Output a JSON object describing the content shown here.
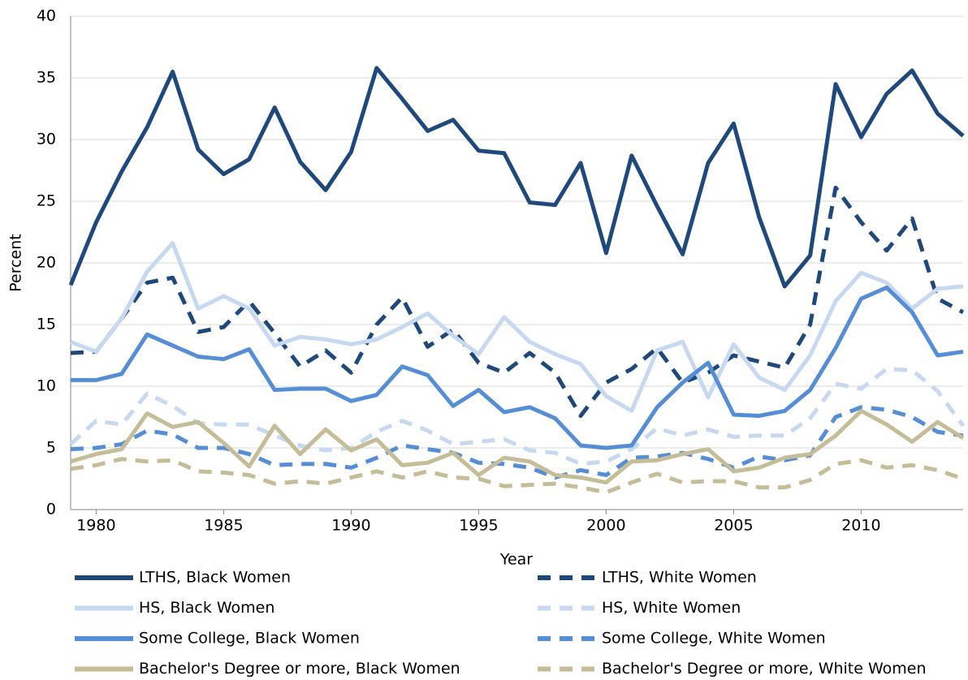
{
  "chart_data": {
    "type": "line",
    "x_label": "Year",
    "y_label": "Percent",
    "x": [
      1979,
      1980,
      1981,
      1982,
      1983,
      1984,
      1985,
      1986,
      1987,
      1988,
      1989,
      1990,
      1991,
      1992,
      1993,
      1994,
      1995,
      1996,
      1997,
      1998,
      1999,
      2000,
      2001,
      2002,
      2003,
      2004,
      2005,
      2006,
      2007,
      2008,
      2009,
      2010,
      2011,
      2012,
      2013,
      2014
    ],
    "xlim": [
      1979,
      2014
    ],
    "xticks": [
      1980,
      1985,
      1990,
      1995,
      2000,
      2005,
      2010
    ],
    "ylim": [
      0,
      40
    ],
    "yticks": [
      0,
      5,
      10,
      15,
      20,
      25,
      30,
      35,
      40
    ],
    "grid": true,
    "series": [
      {
        "name": "LTHS, Black Women",
        "color": "#1f497d",
        "style": "solid",
        "values": [
          18.2,
          23.3,
          27.4,
          31.0,
          35.5,
          29.2,
          27.2,
          28.4,
          32.6,
          28.2,
          25.9,
          29.0,
          35.8,
          33.3,
          30.7,
          31.6,
          29.1,
          28.9,
          24.9,
          24.7,
          28.1,
          20.8,
          28.7,
          24.6,
          20.7,
          28.1,
          31.3,
          23.7,
          18.1,
          20.6,
          34.5,
          30.2,
          33.7,
          35.6,
          32.1,
          30.3
        ]
      },
      {
        "name": "LTHS, White Women",
        "color": "#1f497d",
        "style": "dashed",
        "values": [
          12.7,
          12.8,
          15.5,
          18.4,
          18.8,
          14.4,
          14.8,
          16.9,
          14.3,
          11.6,
          12.9,
          11.1,
          15.0,
          17.2,
          13.2,
          14.6,
          11.9,
          11.1,
          12.7,
          11.1,
          7.6,
          10.3,
          11.4,
          13.1,
          10.3,
          11.1,
          12.5,
          12.0,
          11.5,
          15.0,
          26.1,
          23.3,
          21.0,
          23.6,
          17.1,
          16.0
        ]
      },
      {
        "name": "HS, Black Women",
        "color": "#c6d9f1",
        "style": "solid",
        "values": [
          13.6,
          12.8,
          15.5,
          19.3,
          21.6,
          16.3,
          17.3,
          16.3,
          13.3,
          14.0,
          13.8,
          13.4,
          13.8,
          14.8,
          15.9,
          14.1,
          12.6,
          15.6,
          13.6,
          12.6,
          11.8,
          9.2,
          8.0,
          12.9,
          13.6,
          9.1,
          13.4,
          10.7,
          9.7,
          12.5,
          16.9,
          19.2,
          18.4,
          16.3,
          17.9,
          18.1
        ]
      },
      {
        "name": "HS, White Women",
        "color": "#c6d9f1",
        "style": "dashed",
        "values": [
          5.3,
          7.2,
          6.9,
          9.4,
          8.4,
          7.0,
          6.9,
          6.9,
          6.0,
          5.2,
          4.8,
          5.0,
          6.3,
          7.2,
          6.4,
          5.3,
          5.5,
          5.7,
          4.8,
          4.6,
          3.7,
          3.9,
          4.9,
          6.6,
          6.0,
          6.5,
          5.9,
          6.0,
          6.0,
          7.4,
          10.2,
          9.8,
          11.4,
          11.3,
          9.6,
          6.8
        ]
      },
      {
        "name": "Some College, Black Women",
        "color": "#558ed5",
        "style": "solid",
        "values": [
          10.5,
          10.5,
          11.0,
          14.2,
          13.3,
          12.4,
          12.2,
          13.0,
          9.7,
          9.8,
          9.8,
          8.8,
          9.3,
          11.6,
          10.9,
          8.4,
          9.7,
          7.9,
          8.3,
          7.4,
          5.2,
          5.0,
          5.2,
          8.3,
          10.3,
          11.9,
          7.7,
          7.6,
          8.0,
          9.7,
          13.1,
          17.1,
          18.0,
          16.0,
          12.5,
          12.8
        ]
      },
      {
        "name": "Some College, White Women",
        "color": "#558ed5",
        "style": "dashed",
        "values": [
          4.9,
          5.0,
          5.3,
          6.4,
          6.1,
          5.0,
          5.0,
          4.5,
          3.6,
          3.7,
          3.7,
          3.4,
          4.2,
          5.2,
          4.9,
          4.6,
          3.8,
          3.7,
          3.4,
          2.6,
          3.2,
          2.8,
          4.2,
          4.3,
          4.6,
          4.1,
          3.4,
          4.3,
          4.0,
          4.4,
          7.5,
          8.3,
          8.1,
          7.5,
          6.3,
          6.0
        ]
      },
      {
        "name": "Bachelor's Degree or more, Black Women",
        "color": "#c4bd97",
        "style": "solid",
        "values": [
          3.9,
          4.5,
          4.9,
          7.8,
          6.7,
          7.1,
          5.4,
          3.5,
          6.8,
          4.5,
          6.5,
          4.8,
          5.7,
          3.6,
          3.8,
          4.6,
          2.8,
          4.2,
          3.9,
          2.8,
          2.6,
          2.2,
          3.9,
          4.0,
          4.5,
          4.9,
          3.1,
          3.4,
          4.2,
          4.5,
          6.0,
          8.0,
          6.9,
          5.5,
          7.1,
          5.8
        ]
      },
      {
        "name": "Bachelor's Degree or more, White Women",
        "color": "#c4bd97",
        "style": "dashed",
        "values": [
          3.3,
          3.6,
          4.1,
          3.9,
          4.0,
          3.1,
          3.0,
          2.8,
          2.1,
          2.3,
          2.1,
          2.6,
          3.1,
          2.6,
          3.1,
          2.6,
          2.5,
          1.9,
          2.0,
          2.1,
          1.8,
          1.4,
          2.2,
          2.9,
          2.2,
          2.3,
          2.3,
          1.8,
          1.8,
          2.4,
          3.7,
          4.0,
          3.4,
          3.6,
          3.2,
          2.5
        ]
      }
    ]
  }
}
